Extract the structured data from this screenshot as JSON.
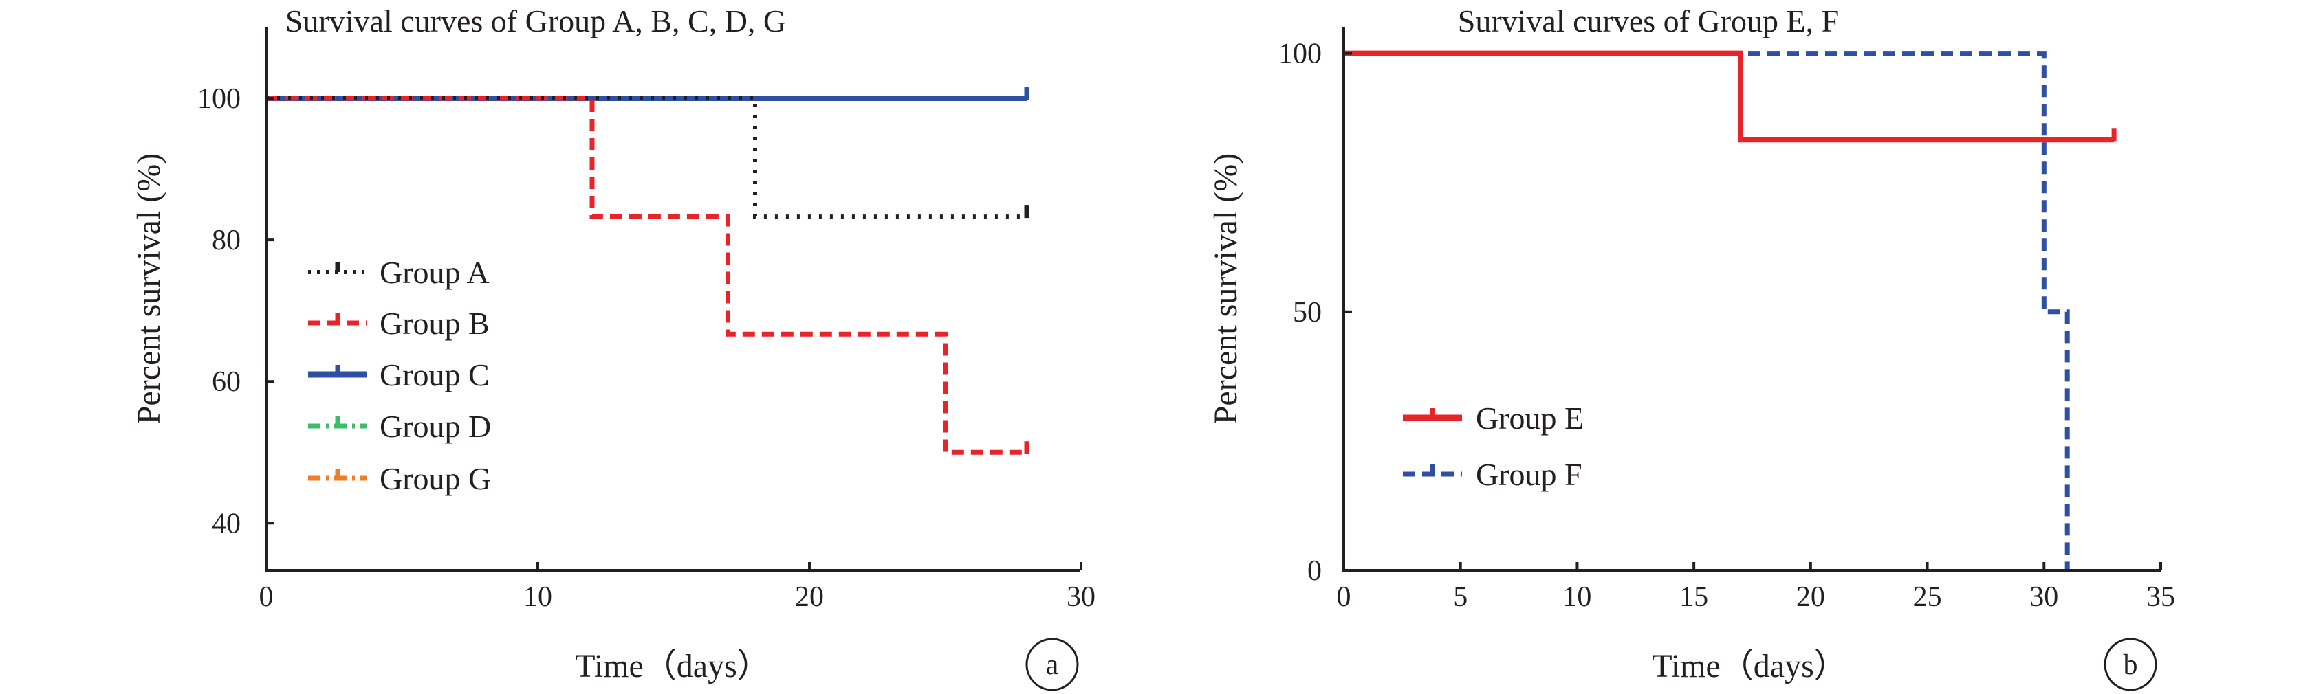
{
  "chart_data": [
    {
      "type": "line",
      "step": true,
      "panel_label": "a",
      "title": "Survival curves of  Group A, B, C, D, G",
      "xlabel": "Time（days）",
      "ylabel": "Percent survival (%)",
      "xlim": [
        0,
        30
      ],
      "ylim": [
        33.33,
        110
      ],
      "xticks": [
        0,
        10,
        20,
        30
      ],
      "yticks": [
        40,
        60,
        80,
        100
      ],
      "legend_position": "left",
      "series": [
        {
          "name": "Group A",
          "color": "#231f20",
          "dash": "dotted",
          "x": [
            0,
            18,
            18,
            28
          ],
          "y": [
            100,
            100,
            83.3,
            83.3
          ],
          "censor": [
            [
              28,
              83.3
            ]
          ]
        },
        {
          "name": "Group B",
          "color": "#e8242b",
          "dash": "dashed",
          "x": [
            0,
            12,
            12,
            17,
            17,
            25,
            25,
            28
          ],
          "y": [
            100,
            100,
            83.3,
            83.3,
            66.7,
            66.7,
            50,
            50
          ],
          "censor": [
            [
              28,
              50
            ]
          ]
        },
        {
          "name": "Group C",
          "color": "#2e4fa2",
          "dash": "solid",
          "x": [
            0,
            28
          ],
          "y": [
            100,
            100
          ],
          "censor": [
            [
              28,
              100
            ]
          ]
        },
        {
          "name": "Group D",
          "color": "#3dbd6b",
          "dash": "dashdot",
          "x": [
            0,
            28
          ],
          "y": [
            100,
            100
          ],
          "censor": []
        },
        {
          "name": "Group G",
          "color": "#f07d2a",
          "dash": "dashdot",
          "x": [
            0,
            28
          ],
          "y": [
            100,
            100
          ],
          "censor": []
        }
      ]
    },
    {
      "type": "line",
      "step": true,
      "panel_label": "b",
      "title": "Survival curves of  Group E, F",
      "xlabel": "Time（days）",
      "ylabel": "Percent survival (%)",
      "xlim": [
        0,
        35
      ],
      "ylim": [
        0,
        105
      ],
      "xticks": [
        0,
        5,
        10,
        15,
        20,
        25,
        30,
        35
      ],
      "yticks": [
        0,
        50,
        100
      ],
      "legend_position": "bottom-left",
      "series": [
        {
          "name": "Group E",
          "color": "#e8242b",
          "dash": "solid",
          "x": [
            0,
            17,
            17,
            33
          ],
          "y": [
            100,
            100,
            83.3,
            83.3
          ],
          "censor": [
            [
              33,
              83.3
            ]
          ]
        },
        {
          "name": "Group F",
          "color": "#2e4fa2",
          "dash": "dashed",
          "x": [
            0,
            30,
            30,
            31,
            31
          ],
          "y": [
            100,
            100,
            50,
            50,
            0
          ],
          "censor": []
        }
      ]
    }
  ]
}
